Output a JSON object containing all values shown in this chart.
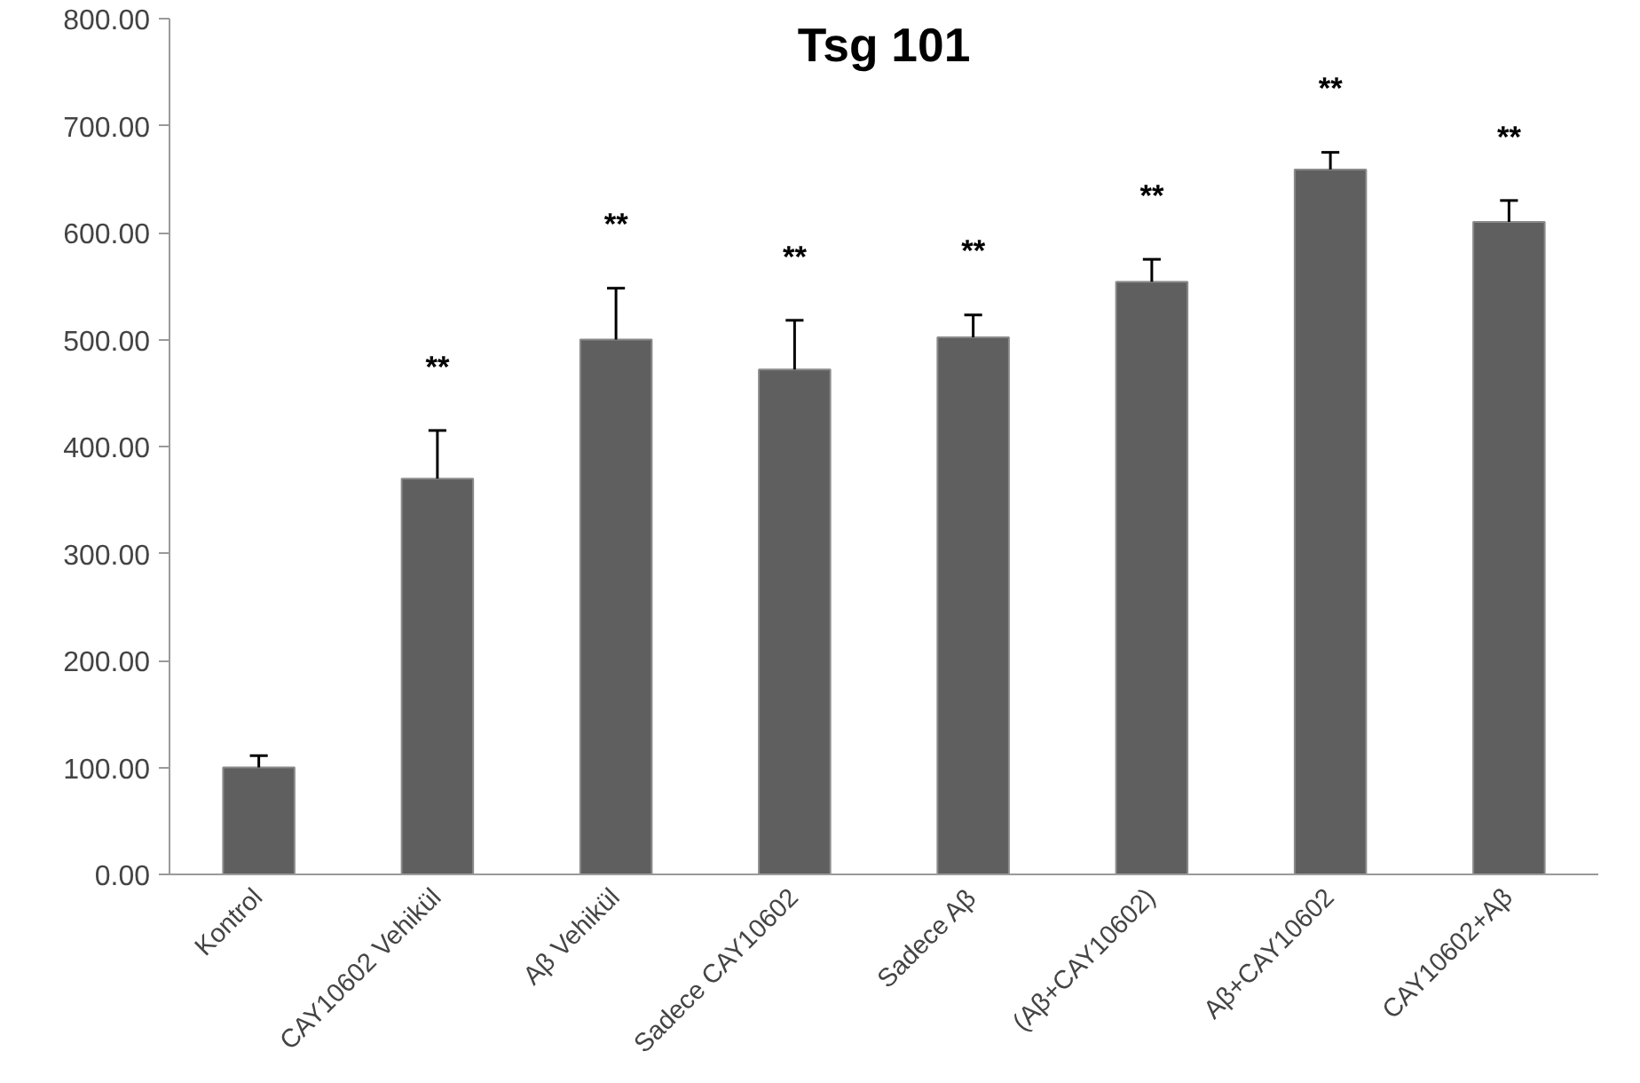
{
  "chart_data": {
    "type": "bar",
    "title": "Tsg 101",
    "categories": [
      "Kontrol",
      "CAY10602 Vehikül",
      "Aβ Vehikül",
      "Sadece CAY10602",
      "Sadece Aβ",
      "(Aβ+CAY10602)",
      "Aβ+CAY10602",
      "CAY10602+Aβ"
    ],
    "values": [
      100,
      370,
      500,
      472,
      502,
      554,
      659,
      610
    ],
    "errors": [
      [
        100,
        111
      ],
      [
        370,
        415
      ],
      [
        500,
        548
      ],
      [
        472,
        518
      ],
      [
        502,
        523
      ],
      [
        554,
        575
      ],
      [
        659,
        675
      ],
      [
        610,
        630
      ]
    ],
    "color": "#5f5f5f",
    "ylim": [
      0,
      800
    ],
    "yticks": [
      {
        "value": 0,
        "label": "0.00"
      },
      {
        "value": 100,
        "label": "100.00"
      },
      {
        "value": 200,
        "label": "200.00"
      },
      {
        "value": 300,
        "label": "300.00"
      },
      {
        "value": 400,
        "label": "400.00"
      },
      {
        "value": 500,
        "label": "500.00"
      },
      {
        "value": 600,
        "label": "600.00"
      },
      {
        "value": 700,
        "label": "700.00"
      },
      {
        "value": 800,
        "label": "800.00"
      }
    ],
    "annotations": [
      "**",
      "**",
      "**",
      "**",
      "**",
      "**",
      "**"
    ],
    "grid": false
  }
}
